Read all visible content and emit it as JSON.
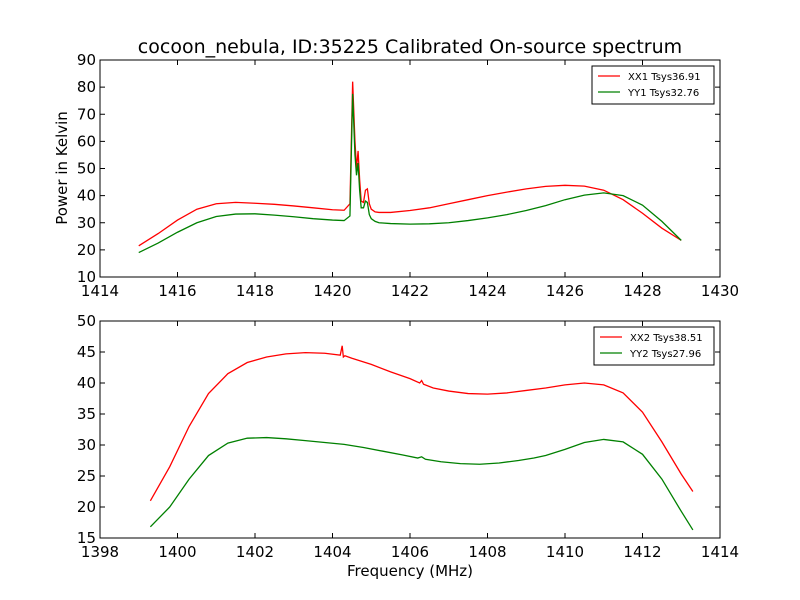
{
  "figure": {
    "title": "cocoon_nebula, ID:35225 Calibrated On-source spectrum",
    "ylabel": "Power in Kelvin",
    "xlabel": "Frequency (MHz)"
  },
  "chart_data": [
    {
      "type": "line",
      "title": "cocoon_nebula, ID:35225 Calibrated On-source spectrum",
      "xlabel": "",
      "ylabel": "Power in Kelvin",
      "xlim": [
        1414,
        1430
      ],
      "ylim": [
        10,
        90
      ],
      "xticks": [
        1414,
        1416,
        1418,
        1420,
        1422,
        1424,
        1426,
        1428,
        1430
      ],
      "yticks": [
        10,
        20,
        30,
        40,
        50,
        60,
        70,
        80,
        90
      ],
      "grid": false,
      "legend_position": "top-right",
      "series": [
        {
          "name": "XX1 Tsys36.91",
          "color": "#ff0000",
          "x": [
            1415.0,
            1415.5,
            1416.0,
            1416.5,
            1417.0,
            1417.5,
            1418.0,
            1418.5,
            1419.0,
            1419.5,
            1420.0,
            1420.3,
            1420.45,
            1420.52,
            1420.58,
            1420.62,
            1420.66,
            1420.7,
            1420.74,
            1420.8,
            1420.85,
            1420.9,
            1420.95,
            1421.0,
            1421.1,
            1421.2,
            1421.5,
            1422.0,
            1422.5,
            1423.0,
            1423.5,
            1424.0,
            1424.5,
            1425.0,
            1425.5,
            1426.0,
            1426.5,
            1427.0,
            1427.5,
            1428.0,
            1428.5,
            1429.0
          ],
          "values": [
            21.5,
            26.0,
            31.0,
            35.0,
            37.0,
            37.5,
            37.2,
            36.8,
            36.2,
            35.5,
            34.8,
            34.6,
            37.0,
            82.0,
            60.0,
            50.0,
            56.5,
            46.0,
            38.0,
            37.5,
            42.0,
            42.5,
            37.0,
            35.0,
            34.0,
            33.8,
            33.8,
            34.5,
            35.5,
            37.0,
            38.5,
            40.0,
            41.3,
            42.5,
            43.4,
            43.8,
            43.5,
            42.0,
            38.5,
            33.5,
            28.0,
            23.5
          ]
        },
        {
          "name": "YY1 Tsys32.76",
          "color": "#008000",
          "x": [
            1415.0,
            1415.5,
            1416.0,
            1416.5,
            1417.0,
            1417.5,
            1418.0,
            1418.5,
            1419.0,
            1419.5,
            1420.0,
            1420.3,
            1420.45,
            1420.52,
            1420.58,
            1420.62,
            1420.66,
            1420.7,
            1420.74,
            1420.8,
            1420.85,
            1420.9,
            1420.95,
            1421.0,
            1421.1,
            1421.2,
            1421.5,
            1422.0,
            1422.5,
            1423.0,
            1423.5,
            1424.0,
            1424.5,
            1425.0,
            1425.5,
            1426.0,
            1426.5,
            1427.0,
            1427.5,
            1428.0,
            1428.5,
            1429.0
          ],
          "values": [
            19.0,
            22.5,
            26.5,
            30.0,
            32.3,
            33.2,
            33.3,
            32.8,
            32.2,
            31.5,
            31.0,
            30.8,
            32.5,
            77.5,
            55.0,
            47.5,
            52.0,
            42.0,
            35.5,
            35.5,
            38.0,
            37.5,
            33.0,
            31.5,
            30.5,
            30.0,
            29.7,
            29.5,
            29.6,
            30.0,
            30.8,
            31.8,
            33.0,
            34.5,
            36.3,
            38.5,
            40.2,
            41.0,
            40.0,
            36.5,
            30.5,
            23.5
          ]
        }
      ]
    },
    {
      "type": "line",
      "title": "",
      "xlabel": "Frequency (MHz)",
      "ylabel": "",
      "xlim": [
        1398,
        1414
      ],
      "ylim": [
        15,
        50
      ],
      "xticks": [
        1398,
        1400,
        1402,
        1404,
        1406,
        1408,
        1410,
        1412,
        1414
      ],
      "yticks": [
        15,
        20,
        25,
        30,
        35,
        40,
        45,
        50
      ],
      "grid": false,
      "legend_position": "top-right",
      "series": [
        {
          "name": "XX2 Tsys38.51",
          "color": "#ff0000",
          "x": [
            1399.3,
            1399.8,
            1400.3,
            1400.8,
            1401.3,
            1401.8,
            1402.3,
            1402.8,
            1403.3,
            1403.8,
            1404.2,
            1404.25,
            1404.28,
            1404.32,
            1404.5,
            1405.0,
            1405.5,
            1406.0,
            1406.25,
            1406.3,
            1406.35,
            1406.6,
            1407.0,
            1407.5,
            1408.0,
            1408.5,
            1409.0,
            1409.5,
            1410.0,
            1410.5,
            1411.0,
            1411.5,
            1412.0,
            1412.5,
            1413.0,
            1413.3
          ],
          "values": [
            21.0,
            26.5,
            33.0,
            38.3,
            41.5,
            43.3,
            44.2,
            44.7,
            44.9,
            44.8,
            44.5,
            46.0,
            44.2,
            44.4,
            44.0,
            43.0,
            41.8,
            40.7,
            40.0,
            40.4,
            39.8,
            39.2,
            38.7,
            38.3,
            38.2,
            38.4,
            38.8,
            39.2,
            39.7,
            40.0,
            39.7,
            38.4,
            35.3,
            30.5,
            25.3,
            22.5
          ]
        },
        {
          "name": "YY2 Tsys27.96",
          "color": "#008000",
          "x": [
            1399.3,
            1399.8,
            1400.3,
            1400.8,
            1401.3,
            1401.8,
            1402.3,
            1402.8,
            1403.3,
            1403.8,
            1404.3,
            1404.8,
            1405.3,
            1405.8,
            1406.2,
            1406.3,
            1406.4,
            1406.8,
            1407.3,
            1407.8,
            1408.3,
            1408.8,
            1409.2,
            1409.5,
            1410.0,
            1410.5,
            1411.0,
            1411.5,
            1412.0,
            1412.5,
            1413.0,
            1413.3
          ],
          "values": [
            16.8,
            20.0,
            24.5,
            28.3,
            30.3,
            31.1,
            31.2,
            31.0,
            30.7,
            30.4,
            30.1,
            29.6,
            29.0,
            28.4,
            27.9,
            28.1,
            27.7,
            27.3,
            27.0,
            26.9,
            27.1,
            27.5,
            27.9,
            28.3,
            29.3,
            30.4,
            30.9,
            30.5,
            28.5,
            24.5,
            19.3,
            16.3
          ]
        }
      ]
    }
  ]
}
